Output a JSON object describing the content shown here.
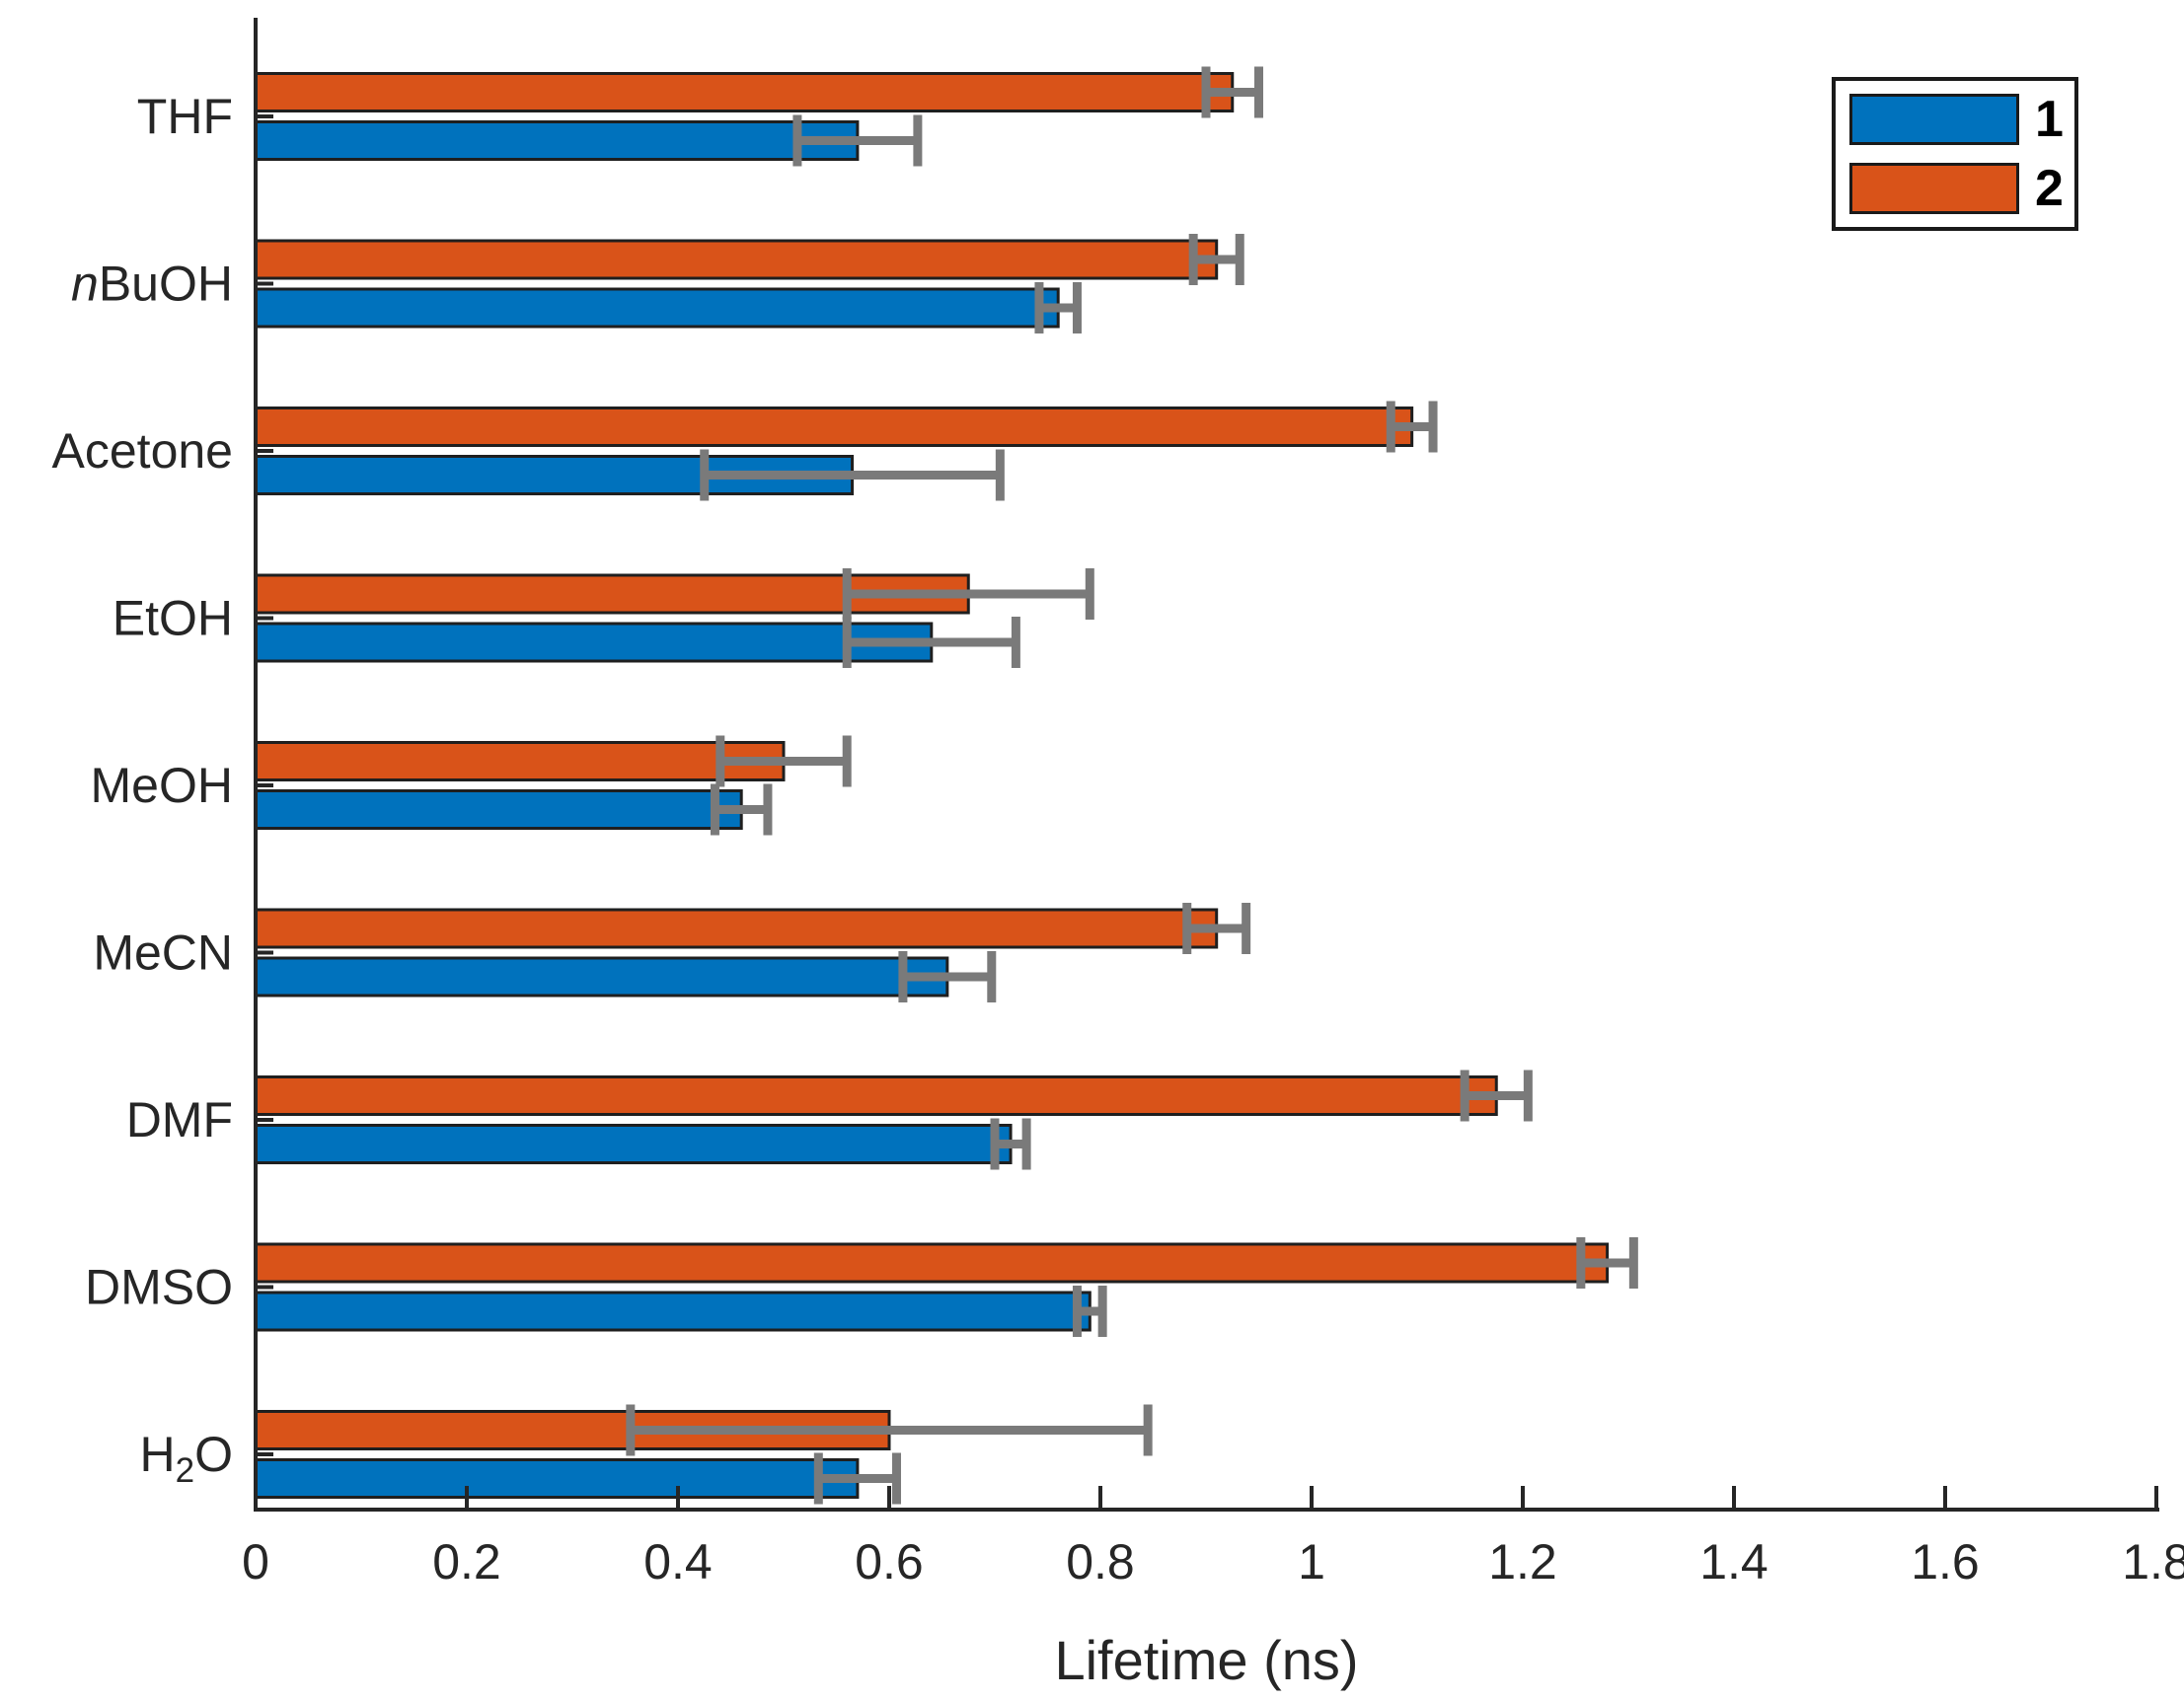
{
  "chart_data": {
    "type": "bar",
    "orientation": "horizontal",
    "title": "",
    "xlabel": "Lifetime (ns)",
    "ylabel": "",
    "xlim": [
      0,
      1.8
    ],
    "xticks": [
      "0",
      "0.2",
      "0.4",
      "0.6",
      "0.8",
      "1",
      "1.2",
      "1.4",
      "1.6",
      "1.8"
    ],
    "grid": false,
    "legend_position": "top-right",
    "categories": [
      "THF",
      "nBuOH",
      "Acetone",
      "EtOH",
      "MeOH",
      "MeCN",
      "DMF",
      "DMSO",
      "H2O"
    ],
    "category_segments": [
      [
        {
          "text": "THF"
        }
      ],
      [
        {
          "text": "n",
          "style": "italic"
        },
        {
          "text": "BuOH"
        }
      ],
      [
        {
          "text": "Acetone"
        }
      ],
      [
        {
          "text": "EtOH"
        }
      ],
      [
        {
          "text": "MeOH"
        }
      ],
      [
        {
          "text": "MeCN"
        }
      ],
      [
        {
          "text": "DMF"
        }
      ],
      [
        {
          "text": "DMSO"
        }
      ],
      [
        {
          "text": "H"
        },
        {
          "text": "2",
          "style": "sub"
        },
        {
          "text": "O"
        }
      ]
    ],
    "series": [
      {
        "name": "1",
        "color": "#0072BD",
        "values": [
          0.57,
          0.76,
          0.565,
          0.64,
          0.46,
          0.655,
          0.715,
          0.79,
          0.57
        ],
        "errors": [
          0.057,
          0.018,
          0.14,
          0.08,
          0.025,
          0.042,
          0.015,
          0.012,
          0.037
        ]
      },
      {
        "name": "2",
        "color": "#D95319",
        "values": [
          0.925,
          0.91,
          1.095,
          0.675,
          0.5,
          0.91,
          1.175,
          1.28,
          0.6
        ],
        "errors": [
          0.025,
          0.022,
          0.02,
          0.115,
          0.06,
          0.028,
          0.03,
          0.025,
          0.245
        ]
      }
    ],
    "error_bar_color": "#7A7A7A",
    "bar_edge_color": "#1f1f1f",
    "axis_color": "#262626"
  }
}
